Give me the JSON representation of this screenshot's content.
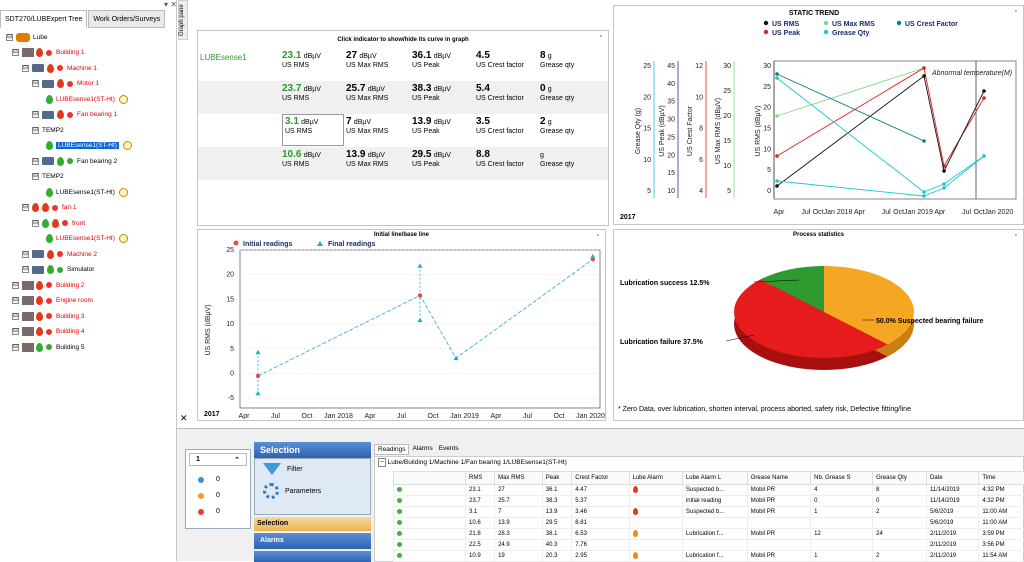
{
  "left": {
    "tabs": [
      "SDT270/LUBExpert Tree",
      "Work Orders/Surveys"
    ],
    "tree": [
      {
        "label": "Lube",
        "level": 0,
        "style": "root"
      },
      {
        "label": "Building 1",
        "level": 1,
        "icon": "building",
        "color": "red"
      },
      {
        "label": "Machine 1",
        "level": 2,
        "icon": "machine",
        "color": "red"
      },
      {
        "label": "Motor 1",
        "level": 3,
        "icon": "motor",
        "color": "red"
      },
      {
        "label": "LUBEsense1(ST-Ht)",
        "level": 4,
        "icon": "drop-green",
        "color": "red",
        "clock": true
      },
      {
        "label": "Fan bearing 1",
        "level": 3,
        "icon": "machine",
        "color": "red"
      },
      {
        "label": "TEMP2",
        "level": 3,
        "icon": "none",
        "color": "black"
      },
      {
        "label": "LUBEsense1(ST-Ht)",
        "level": 4,
        "icon": "drop-green",
        "color": "sel",
        "clock": true
      },
      {
        "label": "Fan bearing 2",
        "level": 3,
        "icon": "machine",
        "color": "black"
      },
      {
        "label": "TEMP2",
        "level": 3,
        "icon": "none",
        "color": "black"
      },
      {
        "label": "LUBEsense1(ST-Ht)",
        "level": 4,
        "icon": "drop-green",
        "color": "black",
        "clock": true
      },
      {
        "label": "fan 1",
        "level": 2,
        "icon": "drop-red",
        "color": "red"
      },
      {
        "label": "front",
        "level": 3,
        "icon": "drop-green",
        "color": "red"
      },
      {
        "label": "LUBEsense1(ST-Ht)",
        "level": 4,
        "icon": "drop-green",
        "color": "red",
        "clock": true
      },
      {
        "label": "Machine 2",
        "level": 2,
        "icon": "machine",
        "color": "red"
      },
      {
        "label": "Simulator",
        "level": 2,
        "icon": "machine",
        "color": "black"
      },
      {
        "label": "Building 2",
        "level": 1,
        "icon": "building",
        "color": "red"
      },
      {
        "label": "Engine room",
        "level": 1,
        "icon": "building",
        "color": "red"
      },
      {
        "label": "Building 3",
        "level": 1,
        "icon": "building",
        "color": "red"
      },
      {
        "label": "Building 4",
        "level": 1,
        "icon": "building",
        "color": "red"
      },
      {
        "label": "Building 5",
        "level": 1,
        "icon": "building",
        "color": "black"
      }
    ]
  },
  "graph_pane": "Graph pane",
  "indicators": {
    "hint": "Click indicator to show/hide its curve in graph",
    "sensor": "LUBEsense1",
    "rows": [
      [
        {
          "v": "23.1",
          "u": "dBµV",
          "l": "US RMS",
          "g": true
        },
        {
          "v": "27",
          "u": "dBµV",
          "l": "US Max RMS"
        },
        {
          "v": "36.1",
          "u": "dBµV",
          "l": "US Peak"
        },
        {
          "v": "4.5",
          "u": "",
          "l": "US Crest factor"
        },
        {
          "v": "8",
          "u": "g",
          "l": "Grease qty"
        }
      ],
      [
        {
          "v": "23.7",
          "u": "dBµV",
          "l": "US RMS",
          "g": true
        },
        {
          "v": "25.7",
          "u": "dBµV",
          "l": "US Max RMS"
        },
        {
          "v": "38.3",
          "u": "dBµV",
          "l": "US Peak"
        },
        {
          "v": "5.4",
          "u": "",
          "l": "US Crest factor"
        },
        {
          "v": "0",
          "u": "g",
          "l": "Grease qty"
        }
      ],
      [
        {
          "v": "3.1",
          "u": "dBµV",
          "l": "US RMS",
          "g": true
        },
        {
          "v": "7",
          "u": "dBµV",
          "l": "US Max RMS"
        },
        {
          "v": "13.9",
          "u": "dBµV",
          "l": "US Peak"
        },
        {
          "v": "3.5",
          "u": "",
          "l": "US Crest factor"
        },
        {
          "v": "2",
          "u": "g",
          "l": "Grease qty"
        }
      ],
      [
        {
          "v": "10.6",
          "u": "dBµV",
          "l": "US RMS",
          "g": true
        },
        {
          "v": "13.9",
          "u": "dBµV",
          "l": "US Max RMS"
        },
        {
          "v": "29.5",
          "u": "dBµV",
          "l": "US Peak"
        },
        {
          "v": "8.8",
          "u": "",
          "l": "US Crest factor"
        },
        {
          "v": "",
          "u": "g",
          "l": "Grease qty"
        }
      ]
    ]
  },
  "static_trend": {
    "title": "STATIC TREND",
    "legend": [
      "US RMS",
      "US Max RMS",
      "US Crest Factor",
      "US Peak",
      "Grease Qty"
    ],
    "annotation": "Abnormal temperature(M)",
    "year": "2017",
    "x_ticks": [
      "Apr",
      "Jul",
      "OctJan 2018",
      "Apr",
      "Jul",
      "OctJan 2019",
      "Apr",
      "Jul",
      "OctJan 2020"
    ],
    "axes": [
      {
        "label": "Grease Qty (g)",
        "ticks": [
          "25",
          "20",
          "15",
          "10",
          "5"
        ],
        "color": "#19c8d2"
      },
      {
        "label": "US Peak (dBµV)",
        "ticks": [
          "45",
          "40",
          "35",
          "30",
          "25",
          "20",
          "15",
          "10"
        ],
        "color": "#1a3a9a"
      },
      {
        "label": "US Crest Factor",
        "ticks": [
          "12",
          "10",
          "8",
          "6",
          "4"
        ],
        "color": "#e02020"
      },
      {
        "label": "US Max RMS (dBµV)",
        "ticks": [
          "30",
          "25",
          "20",
          "15",
          "10",
          "5"
        ],
        "color": "#7fd87f"
      },
      {
        "label": "US RMS (dBµV)",
        "ticks": [
          "30",
          "25",
          "20",
          "15",
          "10",
          "5",
          "0"
        ],
        "color": "#111"
      }
    ]
  },
  "chart_data": [
    {
      "type": "scatter",
      "title": "Initial line/base line",
      "ylabel": "US RMS (dBµV)",
      "ylim": [
        -7,
        25
      ],
      "y_ticks": [
        "25",
        "20",
        "15",
        "10",
        "5",
        "0",
        "-5"
      ],
      "x_ticks": [
        "Apr",
        "Jul",
        "Oct",
        "Jan 2018",
        "Apr",
        "Jul",
        "Oct",
        "Jan 2019",
        "Apr",
        "Jul",
        "Oct",
        "Jan 2020"
      ],
      "year_label": "2017",
      "legend": [
        "Initial readings",
        "Final readings"
      ],
      "series": [
        {
          "name": "Initial readings",
          "points": [
            [
              0.05,
              -0.5
            ],
            [
              0.5,
              15.8
            ],
            [
              0.98,
              23.1
            ]
          ]
        },
        {
          "name": "Final readings",
          "points": [
            [
              0.05,
              4.3
            ],
            [
              0.05,
              -4
            ],
            [
              0.5,
              21.8
            ],
            [
              0.5,
              10.8
            ],
            [
              0.6,
              3.1
            ],
            [
              0.98,
              23.7
            ]
          ]
        }
      ]
    },
    {
      "type": "pie",
      "title": "Process statistics",
      "slices": [
        {
          "label": "Lubrication success",
          "value": 12.5,
          "color": "#2f9a2f"
        },
        {
          "label": "Lubrication failure",
          "value": 37.5,
          "color": "#f5a623"
        },
        {
          "label": "Suspected bearing failure",
          "value": 50.0,
          "color": "#e61c1c"
        }
      ],
      "slice_labels": [
        "Lubrication success  12.5%",
        "Lubrication failure  37.5%",
        "50.0%  Suspected bearing failure"
      ],
      "footer": "* Zero Data,  over lubrication,  shorten interval,  process aborted,  safety risk,  Defective fitting/line"
    }
  ],
  "bottom": {
    "filter_group": {
      "label": "1",
      "items": [
        "0",
        "0",
        "0"
      ]
    },
    "selection_title": "Selection",
    "selection_items": [
      "Filter",
      "Parameters"
    ],
    "bars": [
      "Selection",
      "Alarms"
    ],
    "tabs": [
      "Readings",
      "Alarms",
      "Events"
    ],
    "path": "Lube/Building 1/Machine 1/Fan bearing 1/LUBEsense1(ST-Ht)",
    "headers": [
      "RMS",
      "Max RMS",
      "Peak",
      "Crest Factor",
      "Lube Alarm",
      "Lube Alarm L",
      "Grease Name",
      "Nb. Grease S",
      "Grease Qty",
      "Date",
      "Time"
    ],
    "rows": [
      [
        "23.1",
        "27",
        "36.1",
        "4.47",
        "red",
        "Suspected b...",
        "Mobil PR",
        "4",
        "8",
        "11/14/2019",
        "4:32 PM"
      ],
      [
        "23.7",
        "25.7",
        "38.3",
        "5.37",
        "",
        "initial reading",
        "Mobil PR",
        "0",
        "0",
        "11/14/2019",
        "4:32 PM"
      ],
      [
        "3.1",
        "7",
        "13.9",
        "3.46",
        "red",
        "Suspected b...",
        "Mobil PR",
        "1",
        "2",
        "5/6/2019",
        "11:00 AM"
      ],
      [
        "10.6",
        "13.9",
        "29.5",
        "8.81",
        "",
        "",
        "",
        "",
        "",
        "5/6/2019",
        "11:00 AM"
      ],
      [
        "21.8",
        "28.3",
        "38.1",
        "6.53",
        "orange",
        "Lubrication f...",
        "Mobil PR",
        "12",
        "24",
        "2/11/2019",
        "3:59 PM"
      ],
      [
        "22.5",
        "24.9",
        "40.3",
        "7.76",
        "",
        "",
        "",
        "",
        "",
        "2/11/2019",
        "3:56 PM"
      ],
      [
        "10.9",
        "19",
        "20.3",
        "2.95",
        "orange",
        "Lubrication f...",
        "Mobil PR",
        "1",
        "2",
        "2/11/2019",
        "11:54 AM"
      ]
    ]
  },
  "colors": {
    "accent": "#0a66d6",
    "red": "#e00000",
    "green": "#2a9a2a",
    "cyan": "#19c8d2"
  }
}
